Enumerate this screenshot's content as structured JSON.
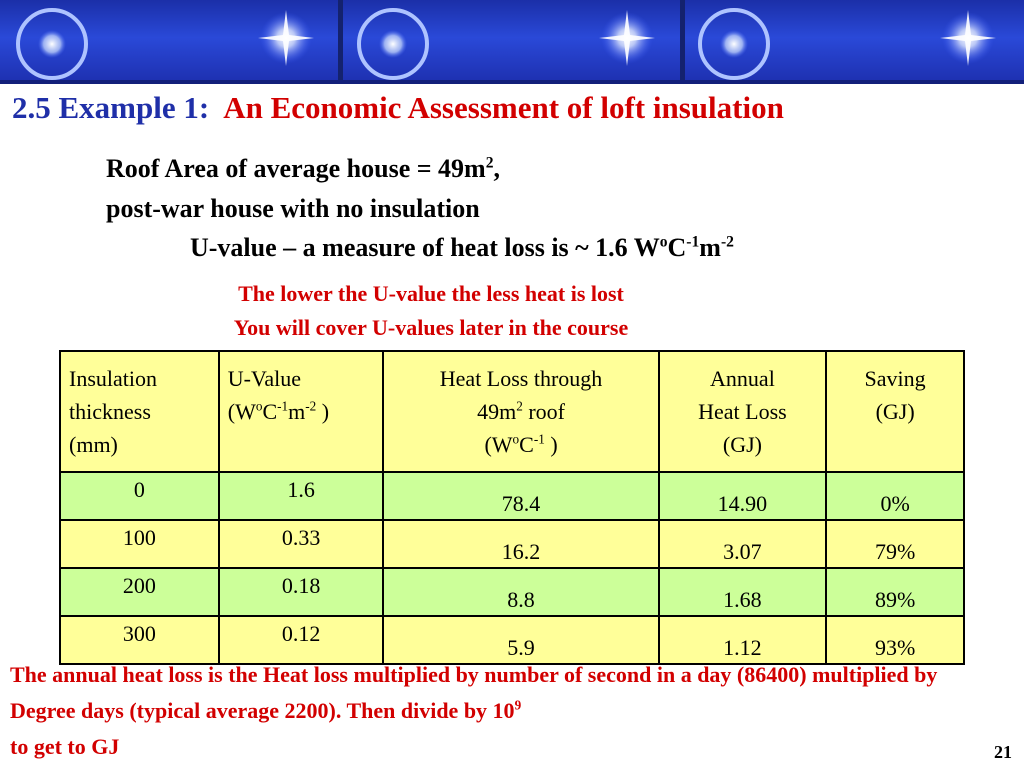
{
  "title": {
    "prefix": "2.5 Example 1:",
    "main": "An Economic Assessment of  loft insulation"
  },
  "intro": {
    "line1_text": "Roof Area of average house = 49m",
    "line1_sup": "2",
    "line1_end": ",",
    "line2": "post-war house with no insulation",
    "line3_text": "U-value – a measure of heat loss is ~ 1.6 W",
    "line3_sup1": "o",
    "line3_mid": "C",
    "line3_sup2": "-1",
    "line3_unit": "m",
    "line3_sup3": "-2"
  },
  "notes": {
    "n1": "The lower the U-value the less heat is lost",
    "n2": "You will cover U-values later in the course"
  },
  "table": {
    "headers": {
      "col1_l1": "Insulation",
      "col1_l2": "thickness",
      "col1_l3": "(mm)",
      "col2_l1": "U-Value",
      "col2_open": "(W",
      "col2_sup1": "o",
      "col2_c": "C",
      "col2_sup2": "-1",
      "col2_m": "m",
      "col2_sup3": "-2",
      "col2_close": " )",
      "col3_l1": "Heat Loss through",
      "col3_l2a": "49m",
      "col3_l2sup": "2",
      "col3_l2b": " roof",
      "col3_open": "(W",
      "col3_sup1": "o",
      "col3_c": "C",
      "col3_sup2": "-1",
      "col3_close": " )",
      "col4_l1": "Annual",
      "col4_l2": "Heat Loss",
      "col4_l3": "(GJ)",
      "col5_l1": "Saving",
      "col5_l2": "(GJ)"
    },
    "rows": [
      {
        "thickness": "0",
        "uvalue": "1.6",
        "heatloss": "78.4",
        "annual": "14.90",
        "saving": "0%"
      },
      {
        "thickness": "100",
        "uvalue": "0.33",
        "heatloss": "16.2",
        "annual": "3.07",
        "saving": "79%"
      },
      {
        "thickness": "200",
        "uvalue": "0.18",
        "heatloss": "8.8",
        "annual": "1.68",
        "saving": "89%"
      },
      {
        "thickness": "300",
        "uvalue": "0.12",
        "heatloss": "5.9",
        "annual": "1.12",
        "saving": "93%"
      }
    ]
  },
  "footer": {
    "text1": "The annual heat loss is the Heat loss multiplied by number of second in a day (86400) multiplied by Degree days (typical average 2200).    Then divide by 10",
    "sup": "9",
    "text2": " to get to GJ"
  },
  "page_number": "21",
  "colors": {
    "title_blue": "#1f2fa8",
    "accent_red": "#d20000",
    "banner_blue": "#2a49d8",
    "row_green": "#ccff99",
    "row_yellow": "#ffff99"
  }
}
